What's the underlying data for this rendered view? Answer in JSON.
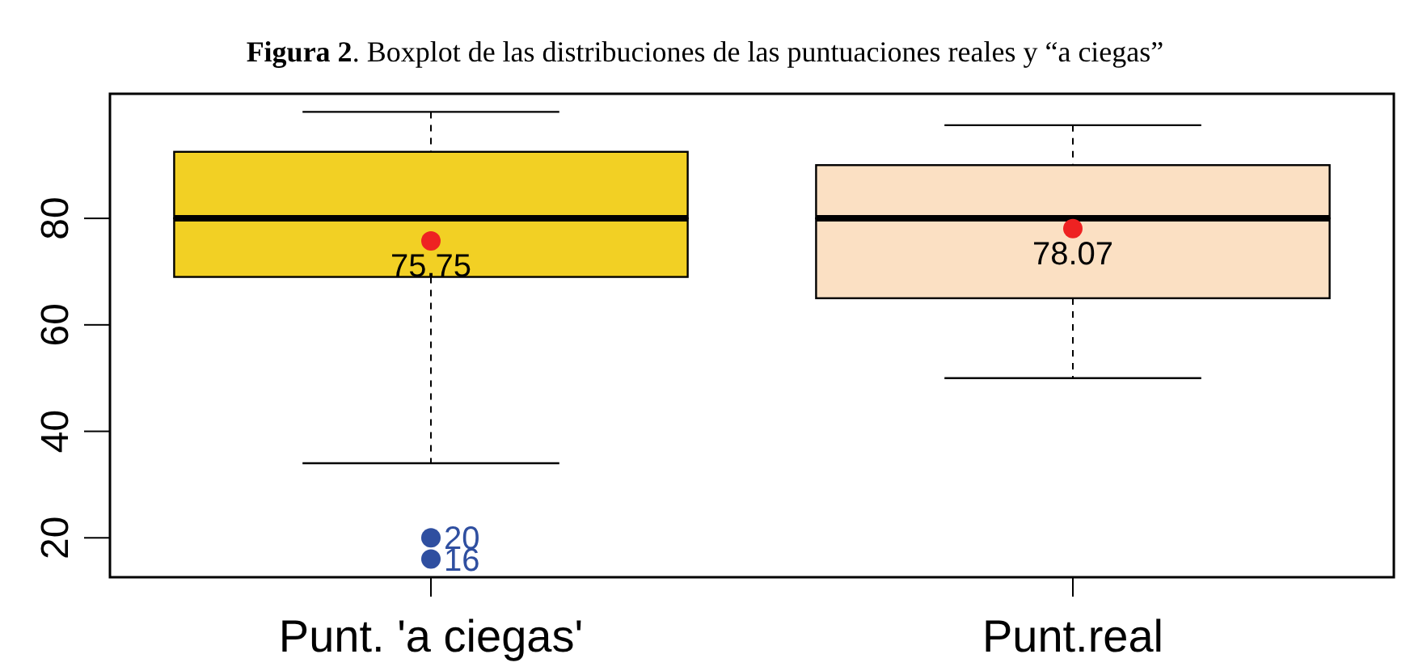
{
  "chart_data": {
    "type": "box",
    "title": "Figura 2. Boxplot de las distribuciones de las puntuaciones reales y “a ciegas”",
    "categories": [
      "Punt. 'a ciegas'",
      "Punt.real"
    ],
    "boxes": [
      {
        "low": 34,
        "q1": 69,
        "median": 80,
        "q3": 92.5,
        "high": 100,
        "mean": 75.75,
        "outliers": [
          20,
          16
        ]
      },
      {
        "low": 50,
        "q1": 65,
        "median": 80,
        "q3": 90,
        "high": 97.5,
        "mean": 78.07
      }
    ],
    "colors": [
      "#f2d024",
      "#fbe0c3"
    ],
    "ylim": [
      12.6,
      103.4
    ],
    "yticks": [
      20,
      40,
      60,
      80
    ],
    "annotations": [
      "75.75",
      "20",
      "16",
      "78.07"
    ]
  }
}
